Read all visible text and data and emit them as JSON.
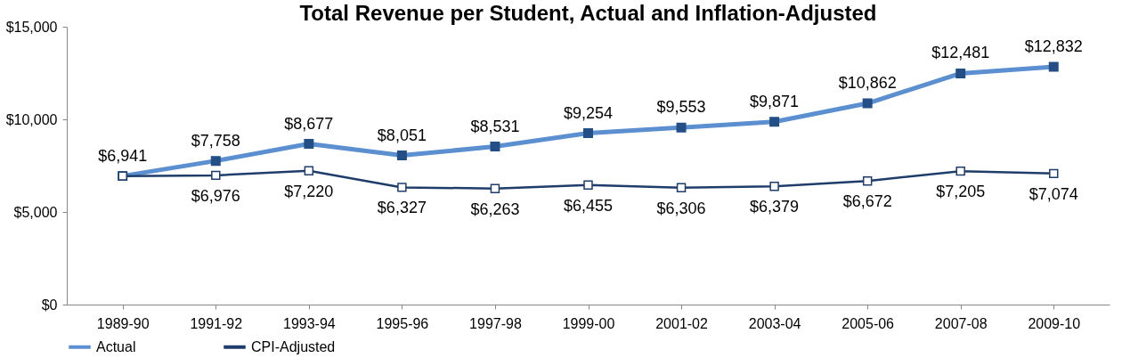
{
  "chart_data": {
    "type": "line",
    "title": "Total Revenue per Student, Actual and Inflation-Adjusted",
    "categories": [
      "1989-90",
      "1991-92",
      "1993-94",
      "1995-96",
      "1997-98",
      "1999-00",
      "2001-02",
      "2003-04",
      "2005-06",
      "2007-08",
      "2009-10"
    ],
    "series": [
      {
        "name": "Actual",
        "color": "#5b8fd0",
        "values": [
          6941,
          7758,
          8677,
          8051,
          8531,
          9254,
          9553,
          9871,
          10862,
          12481,
          12832
        ],
        "value_labels": [
          "$6,941",
          "$7,758",
          "$8,677",
          "$8,051",
          "$8,531",
          "$9,254",
          "$9,553",
          "$9,871",
          "$10,862",
          "$12,481",
          "$12,832"
        ]
      },
      {
        "name": "CPI-Adjusted",
        "color": "#1f3d6b",
        "values": [
          6941,
          6976,
          7220,
          6327,
          6263,
          6455,
          6306,
          6379,
          6672,
          7205,
          7074
        ],
        "value_labels": [
          null,
          "$6,976",
          "$7,220",
          "$6,327",
          "$6,263",
          "$6,455",
          "$6,306",
          "$6,379",
          "$6,672",
          "$7,205",
          "$7,074"
        ]
      }
    ],
    "ylim": [
      0,
      15000
    ],
    "yticks": [
      {
        "value": 0,
        "label": "$0"
      },
      {
        "value": 5000,
        "label": "$5,000"
      },
      {
        "value": 10000,
        "label": "$10,000"
      },
      {
        "value": 15000,
        "label": "$15,000"
      }
    ],
    "grid": false,
    "legend": "bottom",
    "marker": "square",
    "line_style": "solid"
  }
}
